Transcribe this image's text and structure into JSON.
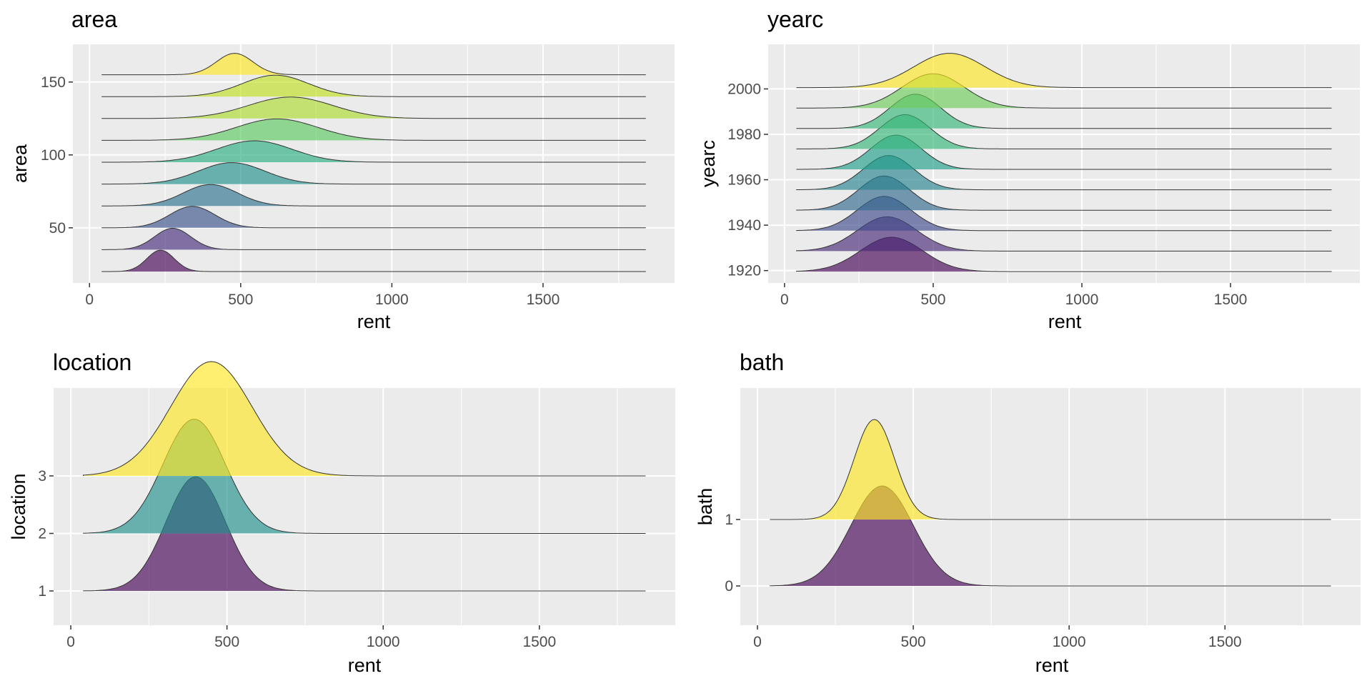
{
  "chart_data": [
    {
      "type": "ridgeline",
      "title": "area",
      "xlabel": "rent",
      "ylabel": "area",
      "xlim": [
        -55,
        1935
      ],
      "x_ticks": [
        0,
        500,
        1000,
        1500
      ],
      "y_ticks": [
        50,
        100,
        150
      ],
      "grid": true,
      "groups": [
        {
          "name": "20",
          "mean": 235,
          "sd": 45,
          "color": "#440154"
        },
        {
          "name": "35",
          "mean": 275,
          "sd": 60,
          "color": "#472D7B"
        },
        {
          "name": "50",
          "mean": 340,
          "sd": 75,
          "color": "#3B528B"
        },
        {
          "name": "65",
          "mean": 400,
          "sd": 90,
          "color": "#2C728E"
        },
        {
          "name": "80",
          "mean": 470,
          "sd": 110,
          "color": "#21908C"
        },
        {
          "name": "95",
          "mean": 545,
          "sd": 125,
          "color": "#28AE80"
        },
        {
          "name": "110",
          "mean": 620,
          "sd": 135,
          "color": "#5EC962"
        },
        {
          "name": "125",
          "mean": 665,
          "sd": 140,
          "color": "#ADDC30"
        },
        {
          "name": "140",
          "mean": 615,
          "sd": 110,
          "color": "#C2DF23"
        },
        {
          "name": "155",
          "mean": 480,
          "sd": 60,
          "color": "#FDE725"
        }
      ]
    },
    {
      "type": "ridgeline",
      "title": "yearc",
      "xlabel": "rent",
      "ylabel": "yearc",
      "xlim": [
        -55,
        1935
      ],
      "x_ticks": [
        0,
        500,
        1000,
        1500
      ],
      "y_ticks": [
        1920,
        1940,
        1960,
        1980,
        2000
      ],
      "grid": true,
      "groups": [
        {
          "name": "1918",
          "mean": 360,
          "sd": 105,
          "color": "#440154"
        },
        {
          "name": "1927",
          "mean": 345,
          "sd": 100,
          "color": "#482878"
        },
        {
          "name": "1936",
          "mean": 335,
          "sd": 90,
          "color": "#3E4A89"
        },
        {
          "name": "1945",
          "mean": 335,
          "sd": 85,
          "color": "#31688E"
        },
        {
          "name": "1953",
          "mean": 350,
          "sd": 85,
          "color": "#26828E"
        },
        {
          "name": "1962",
          "mean": 375,
          "sd": 85,
          "color": "#1F9E89"
        },
        {
          "name": "1971",
          "mean": 405,
          "sd": 85,
          "color": "#35B779"
        },
        {
          "name": "1980",
          "mean": 440,
          "sd": 85,
          "color": "#35B779"
        },
        {
          "name": "1989",
          "mean": 500,
          "sd": 105,
          "color": "#6DCD59"
        },
        {
          "name": "1998",
          "mean": 555,
          "sd": 120,
          "color": "#FDE725"
        }
      ]
    },
    {
      "type": "ridgeline",
      "title": "location",
      "xlabel": "rent",
      "ylabel": "location",
      "xlim": [
        -55,
        1935
      ],
      "x_ticks": [
        0,
        500,
        1000,
        1500
      ],
      "y_ticks": [
        1,
        2,
        3
      ],
      "grid": true,
      "groups": [
        {
          "name": "1",
          "mean": 400,
          "sd": 95,
          "color": "#440154"
        },
        {
          "name": "2",
          "mean": 395,
          "sd": 100,
          "color": "#21908C"
        },
        {
          "name": "3",
          "mean": 450,
          "sd": 130,
          "color": "#FDE725"
        }
      ]
    },
    {
      "type": "ridgeline",
      "title": "bath",
      "xlabel": "rent",
      "ylabel": "bath",
      "xlim": [
        -55,
        1935
      ],
      "x_ticks": [
        0,
        500,
        1000,
        1500
      ],
      "y_ticks": [
        0,
        1
      ],
      "grid": true,
      "groups": [
        {
          "name": "0",
          "mean": 400,
          "sd": 100,
          "color": "#440154"
        },
        {
          "name": "1",
          "mean": 375,
          "sd": 65,
          "color": "#FDE725"
        }
      ]
    }
  ]
}
